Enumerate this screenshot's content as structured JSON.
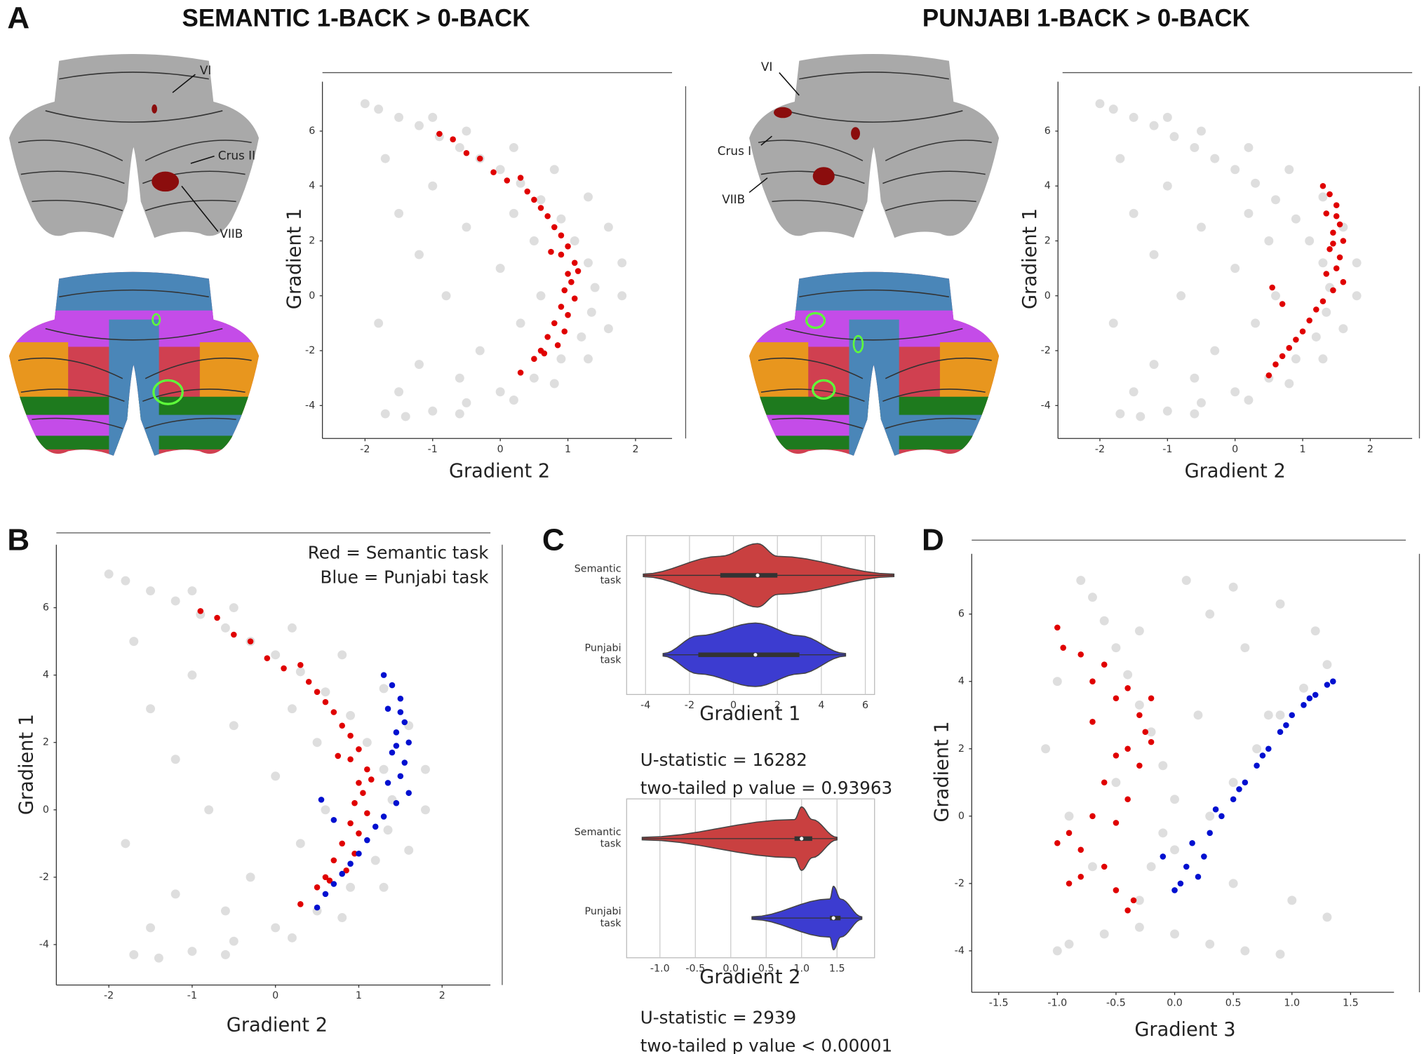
{
  "figure": {
    "panels": [
      "A",
      "B",
      "C",
      "D"
    ],
    "titles": [
      "SEMANTIC 1-BACK > 0-BACK",
      "PUNJABI 1-BACK > 0-BACK"
    ],
    "flatmap_labels": [
      [
        "VI",
        "Crus II",
        "VIIB"
      ],
      [
        "VI",
        "Crus I",
        "VIIB"
      ]
    ]
  },
  "chart_data": [
    {
      "type": "scatter",
      "xlabel": "Gradient 2",
      "ylabel": "Gradient 1",
      "xlim": [
        -2.63,
        2.54
      ],
      "ylim": [
        -5.2,
        7.8
      ],
      "xticks": [
        -2,
        -1,
        0,
        1,
        2
      ],
      "yticks": [
        -4,
        -2,
        0,
        2,
        4,
        6
      ],
      "series": [
        {
          "color": "#000000",
          "opacity": 0.13,
          "x": [
            -2.0,
            -1.8,
            -1.5,
            -1.2,
            -0.9,
            -0.6,
            -0.3,
            0.0,
            0.3,
            0.6,
            0.9,
            1.1,
            1.3,
            1.4,
            1.35,
            1.2,
            0.9,
            0.5,
            0.0,
            -0.5,
            -1.0,
            -1.4,
            -1.7,
            -1.0,
            -0.5,
            0.2,
            0.8,
            1.3,
            1.6,
            1.8,
            1.8,
            1.6,
            1.3,
            0.8,
            0.2,
            -0.6,
            -1.7,
            -1.5,
            -1.2,
            -1.0,
            -0.5,
            -0.8,
            0.0,
            0.3,
            -0.3,
            -1.2,
            -0.6,
            0.5,
            0.2,
            -1.8,
            -1.5,
            0.6
          ],
          "values": [
            7.0,
            6.8,
            6.5,
            6.2,
            5.8,
            5.4,
            5.0,
            4.6,
            4.1,
            3.5,
            2.8,
            2.0,
            1.2,
            0.3,
            -0.6,
            -1.5,
            -2.3,
            -3.0,
            -3.5,
            -3.9,
            -4.2,
            -4.4,
            -4.3,
            6.5,
            6.0,
            5.4,
            4.6,
            3.6,
            2.5,
            1.2,
            0.0,
            -1.2,
            -2.3,
            -3.2,
            -3.8,
            -4.3,
            5.0,
            3.0,
            1.5,
            4.0,
            2.5,
            0.0,
            1.0,
            -1.0,
            -2.0,
            -2.5,
            -3.0,
            2.0,
            3.0,
            -1.0,
            -3.5,
            0.0
          ]
        },
        {
          "color": "#e00000",
          "opacity": 1,
          "x": [
            -0.9,
            -0.7,
            -0.5,
            -0.3,
            -0.1,
            0.1,
            0.3,
            0.4,
            0.5,
            0.6,
            0.7,
            0.8,
            0.9,
            1.0,
            0.9,
            1.1,
            1.0,
            1.05,
            0.95,
            1.1,
            0.9,
            1.0,
            0.8,
            0.95,
            0.7,
            0.85,
            0.6,
            0.5,
            0.3,
            0.65,
            1.15,
            0.75
          ],
          "values": [
            5.9,
            5.7,
            5.2,
            5.0,
            4.5,
            4.2,
            4.3,
            3.8,
            3.5,
            3.2,
            2.9,
            2.5,
            2.2,
            1.8,
            1.5,
            1.2,
            0.8,
            0.5,
            0.2,
            -0.1,
            -0.4,
            -0.7,
            -1.0,
            -1.3,
            -1.5,
            -1.8,
            -2.0,
            -2.3,
            -2.8,
            -2.1,
            0.9,
            1.6
          ]
        }
      ]
    },
    {
      "type": "scatter",
      "xlabel": "Gradient 2",
      "ylabel": "Gradient 1",
      "xlim": [
        -2.62,
        2.62
      ],
      "ylim": [
        -5.2,
        7.8
      ],
      "xticks": [
        -2,
        -1,
        0,
        1,
        2
      ],
      "yticks": [
        -4,
        -2,
        0,
        2,
        4,
        6
      ],
      "series": [
        {
          "color": "#000000",
          "opacity": 0.13,
          "x": [
            -2.0,
            -1.8,
            -1.5,
            -1.2,
            -0.9,
            -0.6,
            -0.3,
            0.0,
            0.3,
            0.6,
            0.9,
            1.1,
            1.3,
            1.4,
            1.35,
            1.2,
            0.9,
            0.5,
            0.0,
            -0.5,
            -1.0,
            -1.4,
            -1.7,
            -1.0,
            -0.5,
            0.2,
            0.8,
            1.3,
            1.6,
            1.8,
            1.8,
            1.6,
            1.3,
            0.8,
            0.2,
            -0.6,
            -1.7,
            -1.5,
            -1.2,
            -1.0,
            -0.5,
            -0.8,
            0.0,
            0.3,
            -0.3,
            -1.2,
            -0.6,
            0.5,
            0.2,
            -1.8,
            -1.5,
            0.6
          ],
          "values": [
            7.0,
            6.8,
            6.5,
            6.2,
            5.8,
            5.4,
            5.0,
            4.6,
            4.1,
            3.5,
            2.8,
            2.0,
            1.2,
            0.3,
            -0.6,
            -1.5,
            -2.3,
            -3.0,
            -3.5,
            -3.9,
            -4.2,
            -4.4,
            -4.3,
            6.5,
            6.0,
            5.4,
            4.6,
            3.6,
            2.5,
            1.2,
            0.0,
            -1.2,
            -2.3,
            -3.2,
            -3.8,
            -4.3,
            5.0,
            3.0,
            1.5,
            4.0,
            2.5,
            0.0,
            1.0,
            -1.0,
            -2.0,
            -2.5,
            -3.0,
            2.0,
            3.0,
            -1.0,
            -3.5,
            0.0
          ]
        },
        {
          "color": "#e00000",
          "opacity": 1,
          "x": [
            1.3,
            1.4,
            1.5,
            1.35,
            1.55,
            1.45,
            1.6,
            1.4,
            1.55,
            1.5,
            1.35,
            1.6,
            1.45,
            1.3,
            1.2,
            1.1,
            1.0,
            0.9,
            0.8,
            0.7,
            0.6,
            0.5,
            0.55,
            0.7,
            1.5,
            1.45
          ],
          "values": [
            4.0,
            3.7,
            3.3,
            3.0,
            2.6,
            2.3,
            2.0,
            1.7,
            1.4,
            1.0,
            0.8,
            0.5,
            0.2,
            -0.2,
            -0.5,
            -0.9,
            -1.3,
            -1.6,
            -1.9,
            -2.2,
            -2.5,
            -2.9,
            0.3,
            -0.3,
            2.9,
            1.9
          ]
        }
      ]
    },
    {
      "type": "scatter",
      "xlabel": "Gradient 2",
      "ylabel": "Gradient 1",
      "xlim": [
        -2.63,
        2.58
      ],
      "ylim": [
        -5.2,
        7.87
      ],
      "xticks": [
        -2,
        -1,
        0,
        1,
        2
      ],
      "yticks": [
        -4,
        -2,
        0,
        2,
        4,
        6
      ],
      "annotations": [
        "Red = Semantic task",
        "Blue = Punjabi task"
      ],
      "series": [
        {
          "color": "#000000",
          "opacity": 0.13,
          "x": [
            -2.0,
            -1.8,
            -1.5,
            -1.2,
            -0.9,
            -0.6,
            -0.3,
            0.0,
            0.3,
            0.6,
            0.9,
            1.1,
            1.3,
            1.4,
            1.35,
            1.2,
            0.9,
            0.5,
            0.0,
            -0.5,
            -1.0,
            -1.4,
            -1.7,
            -1.0,
            -0.5,
            0.2,
            0.8,
            1.3,
            1.6,
            1.8,
            1.8,
            1.6,
            1.3,
            0.8,
            0.2,
            -0.6,
            -1.7,
            -1.5,
            -1.2,
            -1.0,
            -0.5,
            -0.8,
            0.0,
            0.3,
            -0.3,
            -1.2,
            -0.6,
            0.5,
            0.2,
            -1.8,
            -1.5,
            0.6
          ],
          "values": [
            7.0,
            6.8,
            6.5,
            6.2,
            5.8,
            5.4,
            5.0,
            4.6,
            4.1,
            3.5,
            2.8,
            2.0,
            1.2,
            0.3,
            -0.6,
            -1.5,
            -2.3,
            -3.0,
            -3.5,
            -3.9,
            -4.2,
            -4.4,
            -4.3,
            6.5,
            6.0,
            5.4,
            4.6,
            3.6,
            2.5,
            1.2,
            0.0,
            -1.2,
            -2.3,
            -3.2,
            -3.8,
            -4.3,
            5.0,
            3.0,
            1.5,
            4.0,
            2.5,
            0.0,
            1.0,
            -1.0,
            -2.0,
            -2.5,
            -3.0,
            2.0,
            3.0,
            -1.0,
            -3.5,
            0.0
          ]
        },
        {
          "color": "#e00000",
          "opacity": 1,
          "x": [
            -0.9,
            -0.7,
            -0.5,
            -0.3,
            -0.1,
            0.1,
            0.3,
            0.4,
            0.5,
            0.6,
            0.7,
            0.8,
            0.9,
            1.0,
            0.9,
            1.1,
            1.0,
            1.05,
            0.95,
            1.1,
            0.9,
            1.0,
            0.8,
            0.95,
            0.7,
            0.85,
            0.6,
            0.5,
            0.3,
            0.65,
            1.15,
            0.75
          ],
          "values": [
            5.9,
            5.7,
            5.2,
            5.0,
            4.5,
            4.2,
            4.3,
            3.8,
            3.5,
            3.2,
            2.9,
            2.5,
            2.2,
            1.8,
            1.5,
            1.2,
            0.8,
            0.5,
            0.2,
            -0.1,
            -0.4,
            -0.7,
            -1.0,
            -1.3,
            -1.5,
            -1.8,
            -2.0,
            -2.3,
            -2.8,
            -2.1,
            0.9,
            1.6
          ]
        },
        {
          "color": "#0010d0",
          "opacity": 1,
          "x": [
            1.3,
            1.4,
            1.5,
            1.35,
            1.55,
            1.45,
            1.6,
            1.4,
            1.55,
            1.5,
            1.35,
            1.6,
            1.45,
            1.3,
            1.2,
            1.1,
            1.0,
            0.9,
            0.8,
            0.7,
            0.6,
            0.5,
            0.55,
            0.7,
            1.5,
            1.45
          ],
          "values": [
            4.0,
            3.7,
            3.3,
            3.0,
            2.6,
            2.3,
            2.0,
            1.7,
            1.4,
            1.0,
            0.8,
            0.5,
            0.2,
            -0.2,
            -0.5,
            -0.9,
            -1.3,
            -1.6,
            -1.9,
            -2.2,
            -2.5,
            -2.9,
            0.3,
            -0.3,
            2.9,
            1.9
          ]
        }
      ]
    },
    {
      "type": "violin",
      "xlabel": "Gradient 1",
      "xlim": [
        -4.86,
        6.42
      ],
      "xticks": [
        -4,
        -2,
        0,
        2,
        4,
        6
      ],
      "grid": true,
      "categories": [
        "Semantic task",
        "Punjabi task"
      ],
      "colors": [
        "#c94040",
        "#3c3cd0"
      ],
      "min": [
        -4.1,
        -3.2
      ],
      "q1": [
        -0.6,
        -1.6
      ],
      "median": [
        1.1,
        1.0
      ],
      "q3": [
        2.0,
        3.0
      ],
      "max": [
        7.3,
        5.1
      ],
      "annotations": [
        "U-statistic = 16282",
        "two-tailed p value = 0.93963"
      ]
    },
    {
      "type": "violin",
      "xlabel": "Gradient 2",
      "xlim": [
        -1.47,
        2.03
      ],
      "grid": true,
      "xticks": [
        {
          "value": -1,
          "label": "-1.0"
        },
        -0.5,
        {
          "value": 0,
          "label": "0.0"
        },
        0.5,
        {
          "value": 1,
          "label": "1.0"
        },
        1.5
      ],
      "categories": [
        "Semantic task",
        "Punjabi task"
      ],
      "colors": [
        "#c94040",
        "#3c3cd0"
      ],
      "min": [
        -1.25,
        0.3
      ],
      "q1": [
        0.9,
        1.4
      ],
      "median": [
        1.0,
        1.45
      ],
      "q3": [
        1.15,
        1.55
      ],
      "max": [
        1.5,
        1.85
      ],
      "annotations": [
        "U-statistic = 2939",
        "two-tailed p value < 0.00001"
      ]
    },
    {
      "type": "scatter",
      "xlabel": "Gradient 3",
      "ylabel": "Gradient 1",
      "xlim": [
        -1.73,
        1.87
      ],
      "ylim": [
        -5.23,
        7.79
      ],
      "xticks": [
        -1.5,
        {
          "value": -1,
          "label": "-1.0"
        },
        -0.5,
        {
          "value": 0,
          "label": "0.0"
        },
        0.5,
        {
          "value": 1,
          "label": "1.0"
        },
        1.5
      ],
      "yticks": [
        -4,
        -2,
        0,
        2,
        4,
        6
      ],
      "series": [
        {
          "color": "#000000",
          "opacity": 0.13,
          "x": [
            -0.8,
            -0.7,
            -0.6,
            -0.5,
            -0.4,
            -0.3,
            -0.2,
            -0.1,
            0.0,
            -0.1,
            -0.2,
            -0.3,
            -0.3,
            0.0,
            0.3,
            0.6,
            0.9,
            -0.6,
            -0.9,
            -1.0,
            0.0,
            0.3,
            0.5,
            0.7,
            0.9,
            1.1,
            1.3,
            1.2,
            0.9,
            0.5,
            0.1,
            0.3,
            0.6,
            0.8,
            -1.0,
            -1.1,
            -0.9,
            -0.7,
            -0.5,
            -0.3,
            0.2,
            0.5,
            1.0,
            1.3
          ],
          "values": [
            7.0,
            6.5,
            5.8,
            5.0,
            4.2,
            3.3,
            2.5,
            1.5,
            0.5,
            -0.5,
            -1.5,
            -2.5,
            -3.3,
            -3.5,
            -3.8,
            -4.0,
            -4.1,
            -3.5,
            -3.8,
            -4.0,
            -1.0,
            0.0,
            1.0,
            2.0,
            3.0,
            3.8,
            4.5,
            5.5,
            6.3,
            6.8,
            7.0,
            6.0,
            5.0,
            3.0,
            4.0,
            2.0,
            0.0,
            -1.5,
            1.0,
            5.5,
            3.0,
            -2.0,
            -2.5,
            -3.0
          ]
        },
        {
          "color": "#e00000",
          "opacity": 1,
          "x": [
            -1.0,
            -0.95,
            -0.8,
            -0.7,
            -0.6,
            -0.5,
            -0.4,
            -0.3,
            -0.2,
            -0.25,
            -0.4,
            -0.5,
            -0.3,
            -0.6,
            -0.4,
            -0.7,
            -0.5,
            -0.9,
            -0.8,
            -1.0,
            -0.6,
            -0.8,
            -0.9,
            -0.5,
            -0.4,
            -0.35,
            -0.2,
            -0.7
          ],
          "values": [
            5.6,
            5.0,
            4.8,
            4.0,
            4.5,
            3.5,
            3.8,
            3.0,
            3.5,
            2.5,
            2.0,
            1.8,
            1.5,
            1.0,
            0.5,
            0.0,
            -0.2,
            -0.5,
            -1.0,
            -0.8,
            -1.5,
            -1.8,
            -2.0,
            -2.2,
            -2.8,
            -2.5,
            2.2,
            2.8
          ]
        },
        {
          "color": "#0010d0",
          "opacity": 1,
          "x": [
            0.0,
            0.05,
            0.1,
            0.2,
            0.25,
            0.3,
            0.4,
            0.5,
            0.6,
            0.7,
            0.8,
            0.9,
            1.0,
            1.1,
            1.2,
            1.3,
            1.35,
            0.35,
            0.55,
            0.75,
            0.95,
            1.15,
            -0.1,
            0.15
          ],
          "values": [
            -2.2,
            -2.0,
            -1.5,
            -1.8,
            -1.2,
            -0.5,
            0.0,
            0.5,
            1.0,
            1.5,
            2.0,
            2.5,
            3.0,
            3.3,
            3.6,
            3.9,
            4.0,
            0.2,
            0.8,
            1.8,
            2.7,
            3.5,
            -1.2,
            -0.8
          ]
        }
      ]
    }
  ]
}
